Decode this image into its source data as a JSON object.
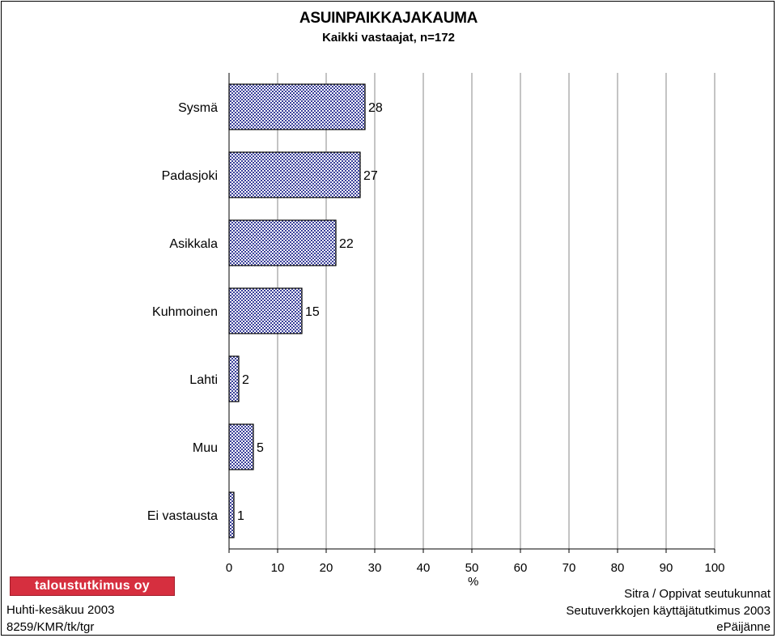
{
  "chart_data": {
    "type": "bar",
    "orientation": "horizontal",
    "title": "ASUINPAIKKAJAKAUMA",
    "subtitle": "Kaikki vastaajat, n=172",
    "categories": [
      "Sysmä",
      "Padasjoki",
      "Asikkala",
      "Kuhmoinen",
      "Lahti",
      "Muu",
      "Ei vastausta"
    ],
    "values": [
      28,
      27,
      22,
      15,
      2,
      5,
      1
    ],
    "xlabel": "%",
    "xlim": [
      0,
      100
    ],
    "xticks": [
      0,
      10,
      20,
      30,
      40,
      50,
      60,
      70,
      80,
      90,
      100
    ],
    "grid": "vertical",
    "bar_color": "#3a3f9a"
  },
  "logo": {
    "text": "taloustutkimus oy",
    "color": "#d62f3f"
  },
  "footer": {
    "left_line1": "Huhti-kesäkuu 2003",
    "left_line2": "8259/KMR/tk/tgr",
    "right_line1": "Sitra / Oppivat seutukunnat",
    "right_line2": "Seutuverkkojen käyttäjätutkimus 2003",
    "right_line3": "ePäijänne"
  }
}
